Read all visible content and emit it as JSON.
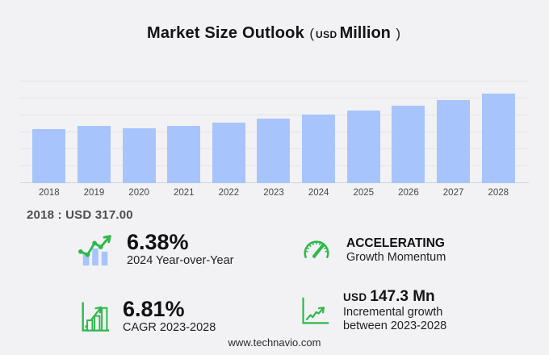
{
  "title": {
    "main": "Market Size Outlook",
    "paren_open": "(",
    "currency": "USD",
    "unit": "Million",
    "paren_close": ")"
  },
  "chart_data": {
    "type": "bar",
    "title": "Market Size Outlook (USD Million)",
    "categories": [
      "2018",
      "2019",
      "2020",
      "2021",
      "2022",
      "2023",
      "2024",
      "2025",
      "2026",
      "2027",
      "2028"
    ],
    "values": [
      317.0,
      333.5,
      320.5,
      334.5,
      354.0,
      377.6,
      401.7,
      427.5,
      455.0,
      489.0,
      524.9
    ],
    "xlabel": "",
    "ylabel": "",
    "ylim": [
      0,
      600
    ],
    "grid_step": 100,
    "grid": "horizontal",
    "legend": "none",
    "bar_color": "#a7c5fc"
  },
  "annotation": {
    "base_year_label": "2018 : USD 317.00"
  },
  "stats": [
    {
      "icon": "bar-line-growth-icon",
      "value": "6.38%",
      "labels": [
        "2024 Year-over-Year"
      ]
    },
    {
      "icon": "speedometer-icon",
      "value": "ACCELERATING",
      "labels": [
        "Growth Momentum"
      ]
    },
    {
      "icon": "bar-chart-growth-icon",
      "value": "6.81%",
      "labels": [
        "CAGR 2023-2028"
      ]
    },
    {
      "icon": "line-chart-icon",
      "value_prefix": "USD",
      "value": "147.3 Mn",
      "labels": [
        "Incremental growth",
        "between 2023-2028"
      ]
    }
  ],
  "footer": {
    "url": "www.technavio.com"
  },
  "colors": {
    "background": "#f2f2f4",
    "bar": "#a7c5fc",
    "accent_green": "#2eb84a",
    "gridline": "#e4e4e7",
    "text_dark": "#141414",
    "caption_gray": "#4d4d4d"
  }
}
